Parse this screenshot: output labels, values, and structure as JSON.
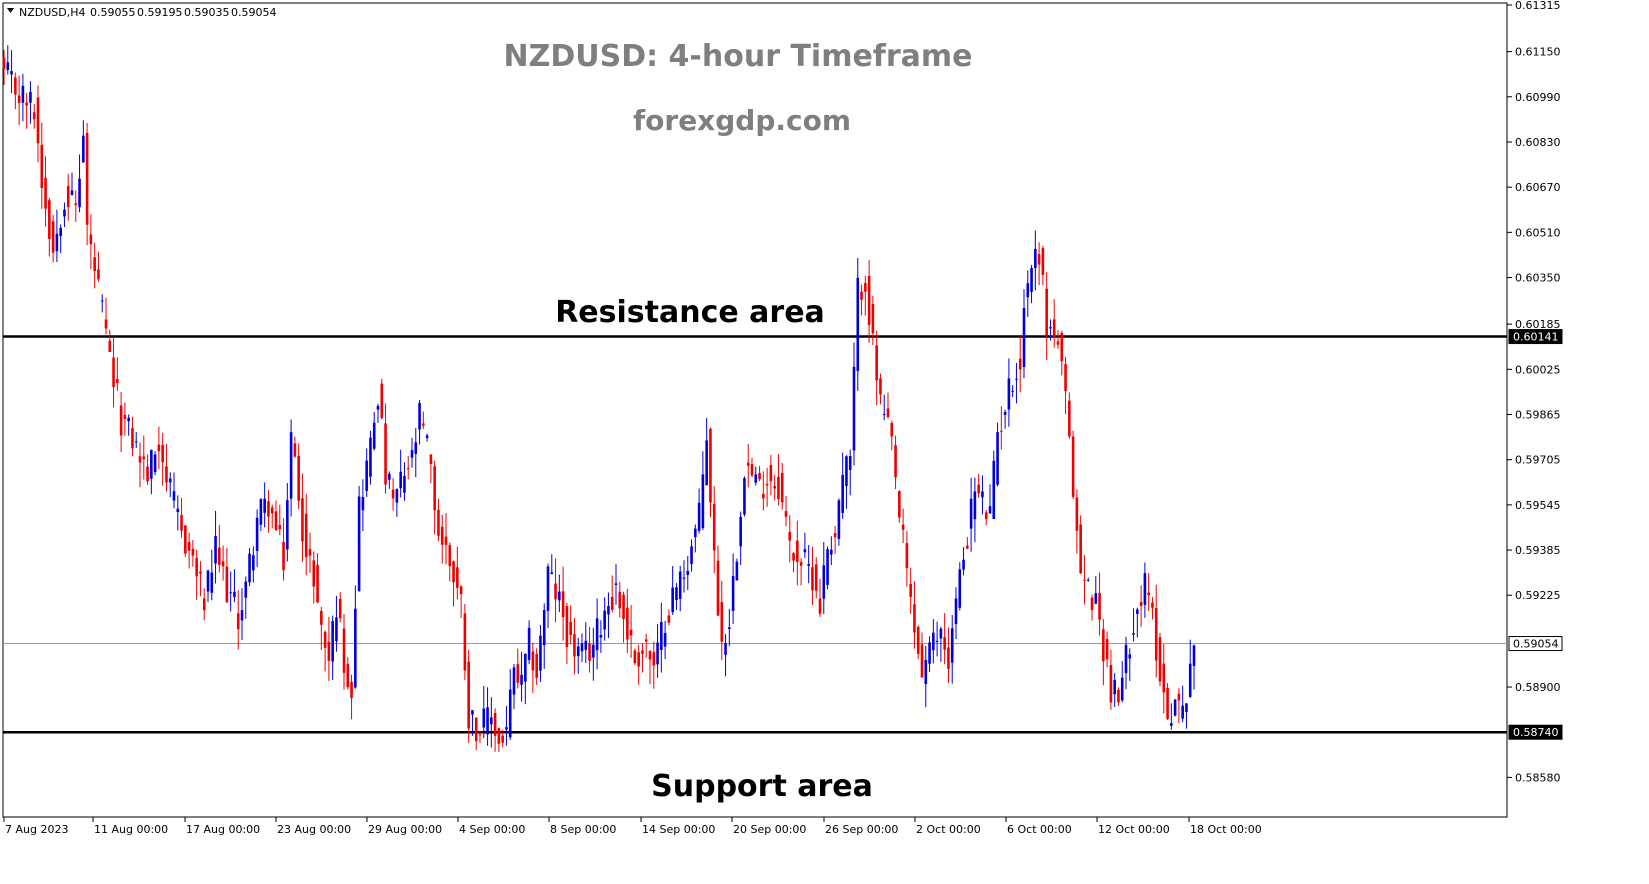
{
  "header": {
    "symbol": "NZDUSD,H4",
    "open": "0.59055",
    "high": "0.59195",
    "low": "0.59035",
    "close": "0.59054"
  },
  "overlay": {
    "title": "NZDUSD: 4-hour Timeframe",
    "site": "forexgdp.com",
    "resistance_label": "Resistance area",
    "support_label": "Support area"
  },
  "colors": {
    "bull": "#0000dd",
    "bear": "#ee0000",
    "level_line": "#000000",
    "current_line": "#8aa0b4",
    "title": "#7f7f7f"
  },
  "chart_data": {
    "type": "candlestick",
    "instrument": "NZDUSD",
    "timeframe": "H4",
    "ylim": [
      0.585,
      0.61315
    ],
    "y_ticks": [
      "0.61315",
      "0.61150",
      "0.60990",
      "0.60830",
      "0.60670",
      "0.60510",
      "0.60350",
      "0.60185",
      "0.60025",
      "0.59865",
      "0.59705",
      "0.59545",
      "0.59385",
      "0.59225",
      "0.58900",
      "0.58580"
    ],
    "x_ticks": [
      "7 Aug 2023",
      "11 Aug 00:00",
      "17 Aug 00:00",
      "23 Aug 00:00",
      "29 Aug 00:00",
      "4 Sep 00:00",
      "8 Sep 00:00",
      "14 Sep 00:00",
      "20 Sep 00:00",
      "26 Sep 00:00",
      "2 Oct 00:00",
      "6 Oct 00:00",
      "12 Oct 00:00",
      "18 Oct 00:00"
    ],
    "levels": [
      {
        "label": "0.60141",
        "value": 0.60141,
        "style": "resistance"
      },
      {
        "label": "0.58740",
        "value": 0.5874,
        "style": "support"
      },
      {
        "label": "0.59054",
        "value": 0.59054,
        "style": "current"
      }
    ],
    "anchors": [
      [
        0,
        0.6107
      ],
      [
        4,
        0.61
      ],
      [
        8,
        0.6095
      ],
      [
        10,
        0.607
      ],
      [
        13,
        0.6045
      ],
      [
        16,
        0.6065
      ],
      [
        19,
        0.606
      ],
      [
        21,
        0.6085
      ],
      [
        22,
        0.6052
      ],
      [
        25,
        0.603
      ],
      [
        28,
        0.6005
      ],
      [
        31,
        0.5985
      ],
      [
        34,
        0.5978
      ],
      [
        38,
        0.5965
      ],
      [
        41,
        0.5978
      ],
      [
        44,
        0.5958
      ],
      [
        47,
        0.5945
      ],
      [
        50,
        0.5935
      ],
      [
        53,
        0.592
      ],
      [
        56,
        0.5938
      ],
      [
        59,
        0.5925
      ],
      [
        62,
        0.5915
      ],
      [
        64,
        0.5925
      ],
      [
        67,
        0.595
      ],
      [
        70,
        0.5955
      ],
      [
        72,
        0.5945
      ],
      [
        74,
        0.5935
      ],
      [
        76,
        0.5978
      ],
      [
        78,
        0.596
      ],
      [
        80,
        0.5935
      ],
      [
        82,
        0.593
      ],
      [
        84,
        0.591
      ],
      [
        86,
        0.59
      ],
      [
        88,
        0.592
      ],
      [
        90,
        0.59
      ],
      [
        92,
        0.589
      ],
      [
        94,
        0.5955
      ],
      [
        97,
        0.5975
      ],
      [
        99,
        0.5995
      ],
      [
        101,
        0.5965
      ],
      [
        103,
        0.5955
      ],
      [
        106,
        0.5965
      ],
      [
        108,
        0.597
      ],
      [
        110,
        0.5985
      ],
      [
        112,
        0.5975
      ],
      [
        115,
        0.5945
      ],
      [
        118,
        0.5935
      ],
      [
        121,
        0.592
      ],
      [
        123,
        0.588
      ],
      [
        126,
        0.5875
      ],
      [
        129,
        0.588
      ],
      [
        131,
        0.587
      ],
      [
        133,
        0.5875
      ],
      [
        135,
        0.5895
      ],
      [
        137,
        0.589
      ],
      [
        139,
        0.5905
      ],
      [
        141,
        0.5895
      ],
      [
        144,
        0.593
      ],
      [
        147,
        0.592
      ],
      [
        150,
        0.5905
      ],
      [
        153,
        0.59
      ],
      [
        156,
        0.5905
      ],
      [
        159,
        0.5918
      ],
      [
        162,
        0.5925
      ],
      [
        164,
        0.5915
      ],
      [
        167,
        0.59
      ],
      [
        170,
        0.5905
      ],
      [
        172,
        0.5895
      ],
      [
        175,
        0.5915
      ],
      [
        178,
        0.5925
      ],
      [
        181,
        0.5935
      ],
      [
        184,
        0.595
      ],
      [
        186,
        0.598
      ],
      [
        188,
        0.5935
      ],
      [
        190,
        0.5905
      ],
      [
        192,
        0.5915
      ],
      [
        194,
        0.594
      ],
      [
        196,
        0.597
      ],
      [
        198,
        0.5965
      ],
      [
        200,
        0.596
      ],
      [
        202,
        0.5965
      ],
      [
        205,
        0.5962
      ],
      [
        208,
        0.594
      ],
      [
        211,
        0.5935
      ],
      [
        214,
        0.593
      ],
      [
        216,
        0.592
      ],
      [
        218,
        0.594
      ],
      [
        220,
        0.5945
      ],
      [
        222,
        0.5965
      ],
      [
        224,
        0.597
      ],
      [
        226,
        0.603
      ],
      [
        228,
        0.6035
      ],
      [
        230,
        0.601
      ],
      [
        232,
        0.599
      ],
      [
        235,
        0.5975
      ],
      [
        237,
        0.595
      ],
      [
        239,
        0.593
      ],
      [
        241,
        0.591
      ],
      [
        243,
        0.5895
      ],
      [
        246,
        0.5905
      ],
      [
        248,
        0.591
      ],
      [
        250,
        0.59
      ],
      [
        252,
        0.592
      ],
      [
        255,
        0.5945
      ],
      [
        257,
        0.596
      ],
      [
        259,
        0.5955
      ],
      [
        261,
        0.595
      ],
      [
        263,
        0.598
      ],
      [
        265,
        0.599
      ],
      [
        267,
        0.6
      ],
      [
        269,
        0.6005
      ],
      [
        270,
        0.6025
      ],
      [
        272,
        0.604
      ],
      [
        274,
        0.6045
      ],
      [
        276,
        0.6018
      ],
      [
        278,
        0.6015
      ],
      [
        279,
        0.6012
      ],
      [
        281,
        0.599
      ],
      [
        283,
        0.596
      ],
      [
        285,
        0.593
      ],
      [
        287,
        0.5925
      ],
      [
        289,
        0.592
      ],
      [
        291,
        0.5905
      ],
      [
        293,
        0.589
      ],
      [
        295,
        0.5885
      ],
      [
        297,
        0.59
      ],
      [
        299,
        0.5915
      ],
      [
        302,
        0.5925
      ],
      [
        304,
        0.5915
      ],
      [
        306,
        0.5895
      ],
      [
        308,
        0.588
      ],
      [
        310,
        0.5885
      ],
      [
        312,
        0.588
      ],
      [
        314,
        0.59
      ],
      [
        315,
        0.5905
      ]
    ]
  }
}
